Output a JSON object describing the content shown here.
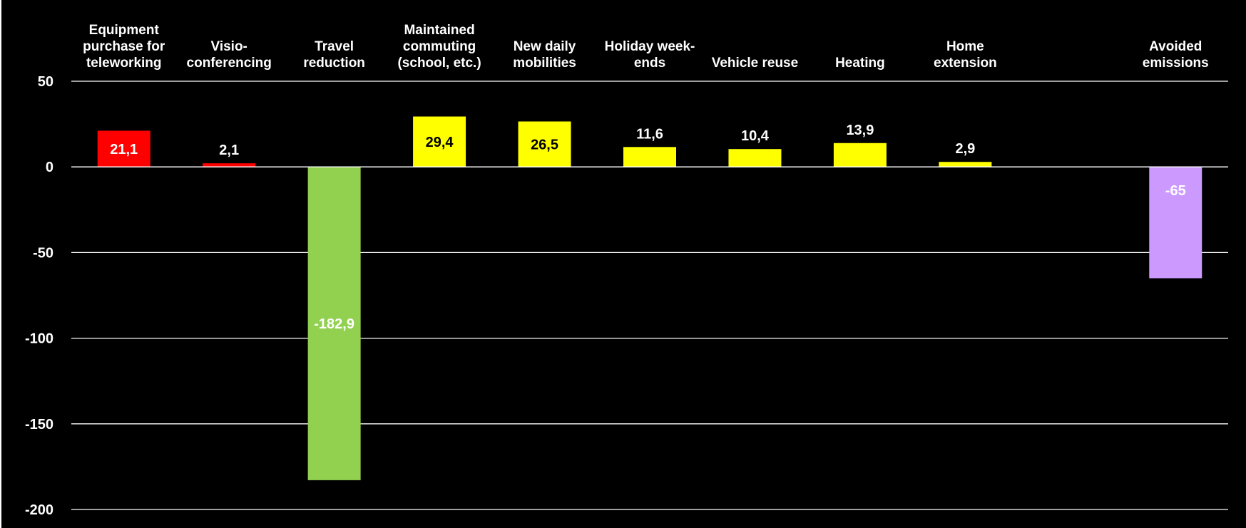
{
  "chart_data": {
    "type": "bar",
    "title": "",
    "xlabel": "",
    "ylabel": "",
    "ylim": [
      -200,
      50
    ],
    "yticks": [
      50,
      0,
      -50,
      -100,
      -150,
      -200
    ],
    "grid": true,
    "categories": [
      [
        "Equipment",
        "purchase for",
        "teleworking"
      ],
      [
        "Visio-",
        "conferencing"
      ],
      [
        "Travel",
        "reduction"
      ],
      [
        "Maintained",
        "commuting",
        "(school, etc.)"
      ],
      [
        "New daily",
        "mobilities"
      ],
      [
        "Holiday week-",
        "ends"
      ],
      [
        "Vehicle reuse"
      ],
      [
        "Heating"
      ],
      [
        "Home",
        "extension"
      ],
      [],
      [
        "Avoided",
        "emissions"
      ]
    ],
    "values": [
      21.1,
      2.1,
      -182.9,
      29.4,
      26.5,
      11.6,
      10.4,
      13.9,
      2.9,
      null,
      -65
    ],
    "value_labels": [
      "21,1",
      "2,1",
      "-182,9",
      "29,4",
      "26,5",
      "11,6",
      "10,4",
      "13,9",
      "2,9",
      "",
      "-65"
    ],
    "bar_colors": [
      "#ff0000",
      "#ff0000",
      "#92d050",
      "#ffff00",
      "#ffff00",
      "#ffff00",
      "#ffff00",
      "#ffff00",
      "#ffff00",
      "",
      "#cc99ff"
    ],
    "label_colors": [
      "#ffffff",
      "#ffffff",
      "#ffffff",
      "#000000",
      "#000000",
      "#ffffff",
      "#ffffff",
      "#ffffff",
      "#ffffff",
      "",
      "#ffffff"
    ],
    "colors": {
      "background": "#000000",
      "axis_text": "#ffffff",
      "gridline": "#ffffff"
    }
  }
}
